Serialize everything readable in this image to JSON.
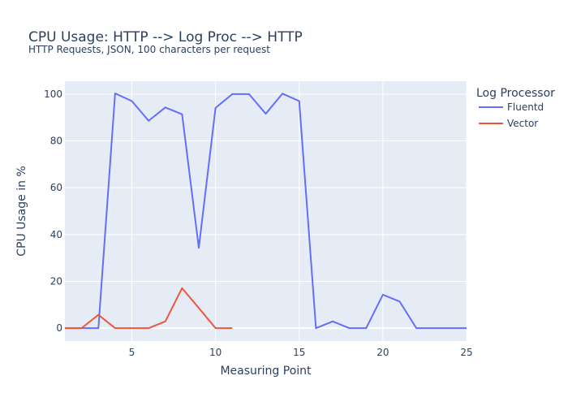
{
  "chart_data": {
    "type": "line",
    "title": "CPU Usage: HTTP --> Log Proc --> HTTP",
    "subtitle": "HTTP Requests, JSON, 100 characters per request",
    "xlabel": "Measuring Point",
    "ylabel": "CPU Usage in %",
    "xlim": [
      1,
      25
    ],
    "ylim": [
      -5.5,
      105.5
    ],
    "x_ticks": [
      5,
      10,
      15,
      20,
      25
    ],
    "y_ticks": [
      0,
      20,
      40,
      60,
      80,
      100
    ],
    "grid": true,
    "legend": {
      "title": "Log Processor",
      "placement": "top-right"
    },
    "series": [
      {
        "name": "Fluentd",
        "color": "#636efa",
        "x": [
          1,
          2,
          3,
          4,
          5,
          6,
          7,
          8,
          9,
          10,
          11,
          12,
          13,
          14,
          15,
          16,
          17,
          18,
          19,
          20,
          21,
          22,
          23,
          24,
          25
        ],
        "values": [
          0,
          0,
          0,
          100.3,
          97,
          88.6,
          94.3,
          91.4,
          34.3,
          94.1,
          100,
          100,
          91.6,
          100.2,
          97,
          0,
          2.9,
          0,
          0,
          14.3,
          11.4,
          0,
          0,
          0,
          0
        ]
      },
      {
        "name": "Vector",
        "color": "#ef553b",
        "x": [
          1,
          2,
          3,
          4,
          5,
          6,
          7,
          8,
          9,
          10,
          11
        ],
        "values": [
          0,
          0,
          5.7,
          0,
          0,
          0,
          2.9,
          17.1,
          8.6,
          0,
          0
        ]
      }
    ]
  }
}
